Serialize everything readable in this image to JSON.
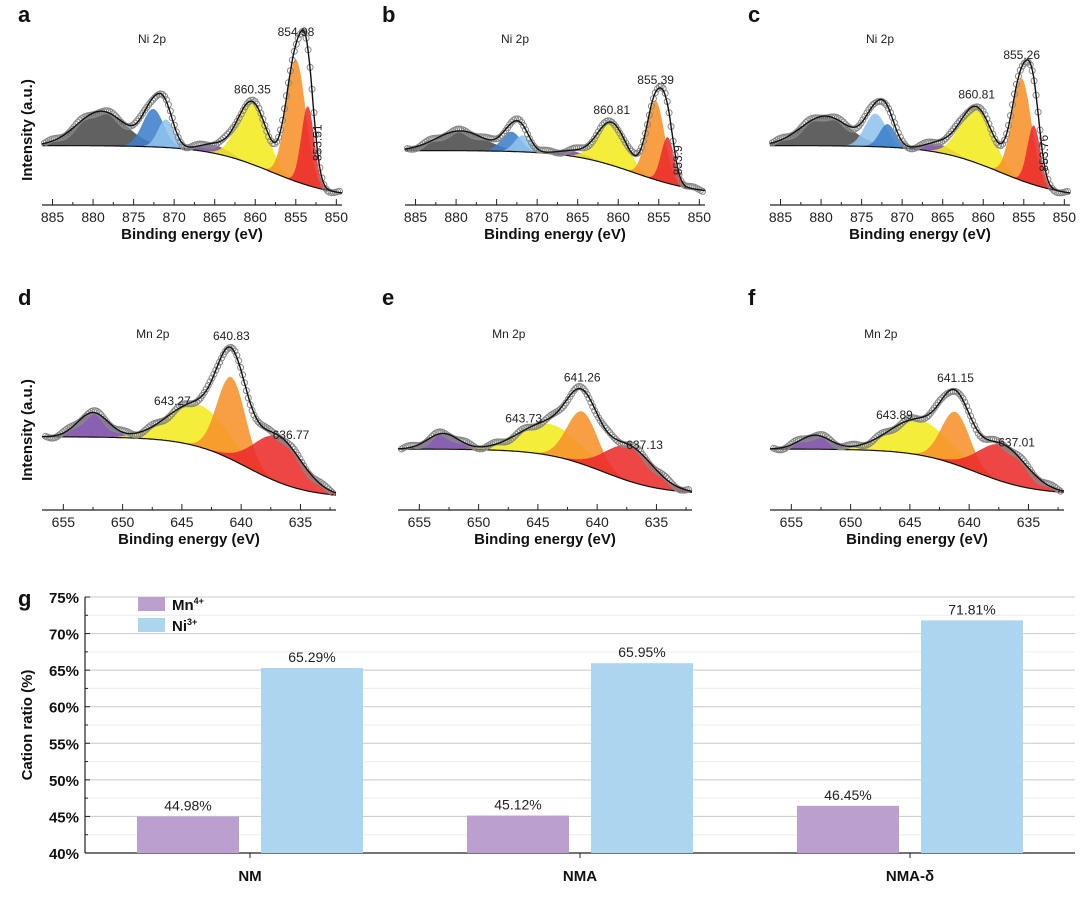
{
  "colors": {
    "gray": "#4b4b4b",
    "blue": "#3d7fcc",
    "lightblue": "#8fc3ec",
    "purple": "#7a4aa8",
    "yellow": "#f3ea1f",
    "orange": "#f7922c",
    "red": "#ec2b2b",
    "mn_bar": "#bb9fcf",
    "ni_bar": "#acd6ef"
  },
  "chart_data": [
    {
      "panel": "a",
      "type": "area",
      "title": "Ni 2p",
      "xlabel": "Binding energy (eV)",
      "ylabel": "Intensity (a.u.)",
      "xlim": [
        886.3,
        849.3
      ],
      "xticks": [
        885,
        880,
        875,
        870,
        865,
        860,
        855,
        850
      ],
      "element": "Ni",
      "background": {
        "left": 0.33,
        "right": 0.01,
        "center": 858,
        "width": 4
      },
      "peaks": [
        {
          "center": 879,
          "height": 0.21,
          "sigma": 3.0,
          "color": "gray"
        },
        {
          "center": 872.6,
          "height": 0.23,
          "sigma": 1.3,
          "color": "blue"
        },
        {
          "center": 871.0,
          "height": 0.17,
          "sigma": 1.0,
          "color": "lightblue"
        },
        {
          "center": 865,
          "height": 0.05,
          "sigma": 1.8,
          "color": "purple"
        },
        {
          "center": 860.35,
          "height": 0.38,
          "sigma": 1.8,
          "color": "yellow"
        },
        {
          "center": 854.98,
          "height": 0.74,
          "sigma": 1.2,
          "color": "orange"
        },
        {
          "center": 853.51,
          "height": 0.48,
          "sigma": 0.8,
          "color": "red"
        }
      ],
      "labels": [
        {
          "text": "860.35",
          "at": 860.35,
          "vertical": false
        },
        {
          "text": "854.98",
          "at": 854.98,
          "vertical": false
        },
        {
          "text": "853.51",
          "at": 852.3,
          "vertical": true
        }
      ]
    },
    {
      "panel": "b",
      "type": "area",
      "title": "Ni 2p",
      "xlabel": "Binding energy (eV)",
      "ylabel": "",
      "xlim": [
        886.3,
        849.3
      ],
      "xticks": [
        885,
        880,
        875,
        870,
        865,
        860,
        855,
        850
      ],
      "element": "Ni",
      "background": {
        "left": 0.3,
        "right": 0.03,
        "center": 858,
        "width": 4
      },
      "peaks": [
        {
          "center": 879.5,
          "height": 0.12,
          "sigma": 3.0,
          "color": "gray"
        },
        {
          "center": 873.2,
          "height": 0.12,
          "sigma": 1.2,
          "color": "blue"
        },
        {
          "center": 871.8,
          "height": 0.1,
          "sigma": 1.0,
          "color": "lightblue"
        },
        {
          "center": 865.5,
          "height": 0.03,
          "sigma": 1.8,
          "color": "purple"
        },
        {
          "center": 860.81,
          "height": 0.26,
          "sigma": 1.8,
          "color": "yellow"
        },
        {
          "center": 855.39,
          "height": 0.48,
          "sigma": 1.1,
          "color": "orange"
        },
        {
          "center": 853.9,
          "height": 0.28,
          "sigma": 0.8,
          "color": "red"
        }
      ],
      "labels": [
        {
          "text": "860.81",
          "at": 860.81,
          "vertical": false
        },
        {
          "text": "855.39",
          "at": 855.39,
          "vertical": false
        },
        {
          "text": "853.9",
          "at": 852.6,
          "vertical": true
        }
      ]
    },
    {
      "panel": "c",
      "type": "area",
      "title": "Ni 2p",
      "xlabel": "Binding energy (eV)",
      "ylabel": "",
      "xlim": [
        886.3,
        849.3
      ],
      "xticks": [
        885,
        880,
        875,
        870,
        865,
        860,
        855,
        850
      ],
      "element": "Ni",
      "background": {
        "left": 0.33,
        "right": 0.01,
        "center": 858,
        "width": 4
      },
      "peaks": [
        {
          "center": 879.5,
          "height": 0.18,
          "sigma": 3.0,
          "color": "gray"
        },
        {
          "center": 873.3,
          "height": 0.2,
          "sigma": 1.3,
          "color": "lightblue"
        },
        {
          "center": 871.8,
          "height": 0.14,
          "sigma": 1.0,
          "color": "blue"
        },
        {
          "center": 865.5,
          "height": 0.05,
          "sigma": 1.8,
          "color": "purple"
        },
        {
          "center": 860.81,
          "height": 0.34,
          "sigma": 2.0,
          "color": "yellow"
        },
        {
          "center": 855.26,
          "height": 0.62,
          "sigma": 1.2,
          "color": "orange"
        },
        {
          "center": 853.76,
          "height": 0.36,
          "sigma": 0.8,
          "color": "red"
        }
      ],
      "labels": [
        {
          "text": "860.81",
          "at": 860.81,
          "vertical": false
        },
        {
          "text": "855.26",
          "at": 855.26,
          "vertical": false
        },
        {
          "text": "853.76",
          "at": 852.5,
          "vertical": true
        }
      ]
    },
    {
      "panel": "d",
      "type": "area",
      "title": "Mn 2p",
      "xlabel": "Binding energy (eV)",
      "ylabel": "Intensity (a.u.)",
      "xlim": [
        656.8,
        632.0
      ],
      "xticks": [
        655,
        650,
        645,
        640,
        635
      ],
      "element": "Mn",
      "background": {
        "left": 0.39,
        "right": 0.04,
        "center": 639.5,
        "width": 2.5
      },
      "peaks": [
        {
          "center": 652.5,
          "height": 0.14,
          "sigma": 1.3,
          "color": "purple"
        },
        {
          "center": 643.6,
          "height": 0.24,
          "sigma": 2.5,
          "color": "yellow"
        },
        {
          "center": 640.83,
          "height": 0.47,
          "sigma": 1.2,
          "color": "orange"
        },
        {
          "center": 636.9,
          "height": 0.26,
          "sigma": 2.0,
          "color": "red"
        }
      ],
      "labels": [
        {
          "text": "643.27",
          "at": 645.8,
          "vertical": false
        },
        {
          "text": "640.83",
          "at": 640.83,
          "vertical": false
        },
        {
          "text": "636.77",
          "at": 635.8,
          "vertical": false
        }
      ]
    },
    {
      "panel": "e",
      "type": "area",
      "title": "Mn 2p",
      "xlabel": "Binding energy (eV)",
      "ylabel": "",
      "xlim": [
        656.8,
        632.0
      ],
      "xticks": [
        655,
        650,
        645,
        640,
        635
      ],
      "element": "Mn",
      "background": {
        "left": 0.32,
        "right": 0.06,
        "center": 639.5,
        "width": 2.5
      },
      "peaks": [
        {
          "center": 653,
          "height": 0.09,
          "sigma": 1.3,
          "color": "purple"
        },
        {
          "center": 644,
          "height": 0.18,
          "sigma": 2.5,
          "color": "yellow"
        },
        {
          "center": 641.26,
          "height": 0.3,
          "sigma": 1.3,
          "color": "orange"
        },
        {
          "center": 637.3,
          "height": 0.2,
          "sigma": 2.0,
          "color": "red"
        }
      ],
      "labels": [
        {
          "text": "643.73",
          "at": 646.2,
          "vertical": false
        },
        {
          "text": "641.26",
          "at": 641.26,
          "vertical": false
        },
        {
          "text": "637.13",
          "at": 636.0,
          "vertical": false
        }
      ]
    },
    {
      "panel": "f",
      "type": "area",
      "title": "Mn 2p",
      "xlabel": "Binding energy (eV)",
      "ylabel": "",
      "xlim": [
        656.8,
        632.0
      ],
      "xticks": [
        655,
        650,
        645,
        640,
        635
      ],
      "element": "Mn",
      "background": {
        "left": 0.32,
        "right": 0.06,
        "center": 639.5,
        "width": 2.5
      },
      "peaks": [
        {
          "center": 653,
          "height": 0.08,
          "sigma": 1.3,
          "color": "purple"
        },
        {
          "center": 644.2,
          "height": 0.2,
          "sigma": 2.5,
          "color": "yellow"
        },
        {
          "center": 641.15,
          "height": 0.3,
          "sigma": 1.2,
          "color": "orange"
        },
        {
          "center": 637.2,
          "height": 0.21,
          "sigma": 2.0,
          "color": "red"
        }
      ],
      "labels": [
        {
          "text": "643.89",
          "at": 646.3,
          "vertical": false
        },
        {
          "text": "641.15",
          "at": 641.15,
          "vertical": false
        },
        {
          "text": "637.01",
          "at": 636.0,
          "vertical": false
        }
      ]
    },
    {
      "panel": "g",
      "type": "bar",
      "title": "",
      "xlabel": "",
      "ylabel": "Cation ratio (%)",
      "ylim": [
        40,
        75
      ],
      "yticks": [
        "40%",
        "45%",
        "50%",
        "55%",
        "60%",
        "65%",
        "70%",
        "75%"
      ],
      "grid": true,
      "legend_position": "top-left",
      "categories": [
        "NM",
        "NMA",
        "NMA-δ"
      ],
      "series": [
        {
          "name": "Mn",
          "superscript": "4+",
          "color": "mn_bar",
          "values": [
            44.98,
            45.12,
            46.45
          ],
          "labels": [
            "44.98%",
            "45.12%",
            "46.45%"
          ]
        },
        {
          "name": "Ni",
          "superscript": "3+",
          "color": "ni_bar",
          "values": [
            65.29,
            65.95,
            71.81
          ],
          "labels": [
            "65.29%",
            "65.95%",
            "71.81%"
          ]
        }
      ]
    }
  ]
}
